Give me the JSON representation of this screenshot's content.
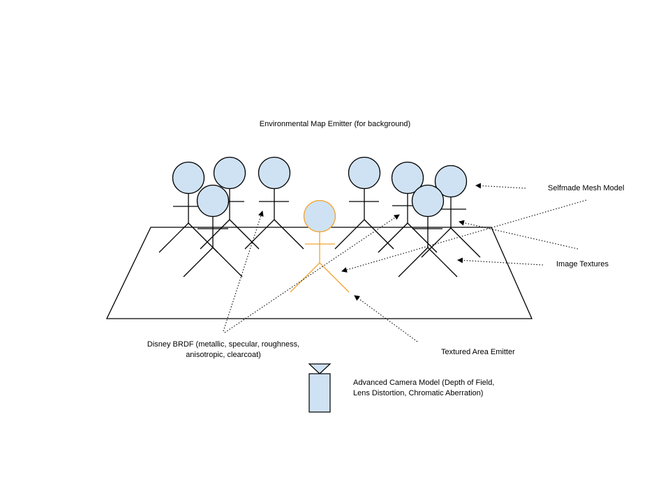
{
  "labels": {
    "env_map": "Environmental Map Emitter (for background)",
    "mesh_model": "Selfmade Mesh Model",
    "image_textures": "Image Textures",
    "disney_brdf_line1": "Disney BRDF (metallic, specular, roughness,",
    "disney_brdf_line2": "anisotropic, clearcoat)",
    "area_emitter": "Textured Area Emitter",
    "camera_line1": "Advanced Camera Model (Depth of Field,",
    "camera_line2": "Lens Distortion, Chromatic Aberration)"
  },
  "colors": {
    "figure_stroke": "#000000",
    "figure_fill": "#cfe2f3",
    "emitter_stroke": "#f1a42f",
    "camera_fill": "#cfe2f3",
    "arrow_stroke": "#000000"
  },
  "icons": {
    "stick_figure": "person-icon",
    "emitter_figure": "emitter-person-icon",
    "camera": "camera-icon"
  }
}
